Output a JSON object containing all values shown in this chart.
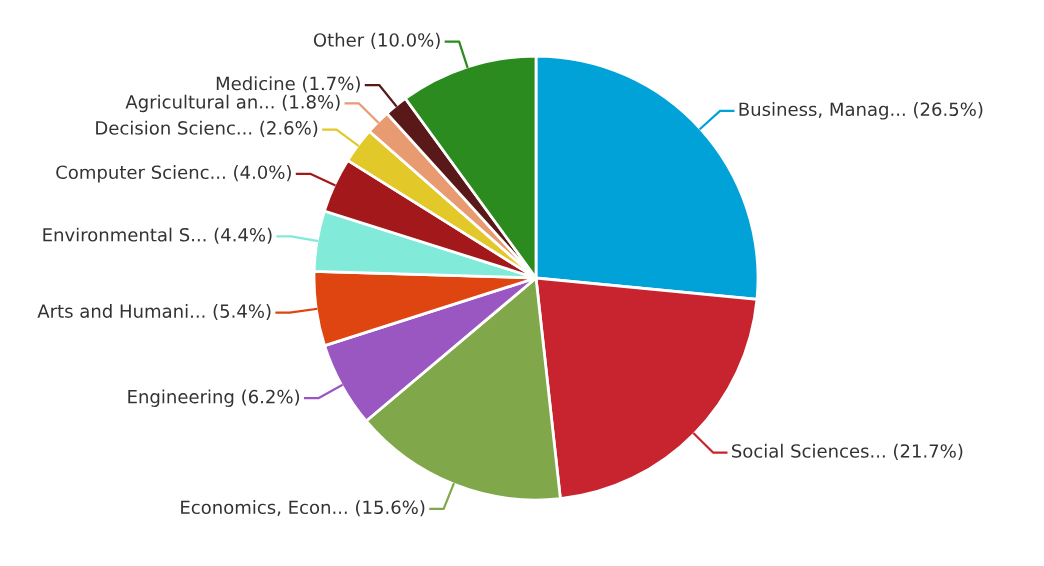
{
  "chart_data": {
    "type": "pie",
    "categories": [
      "Business, Manag...",
      "Social Sciences...",
      "Economics, Econ...",
      "Engineering",
      "Arts and Humani...",
      "Environmental S...",
      "Computer Scienc...",
      "Decision Scienc...",
      "Agricultural an...",
      "Medicine",
      "Other"
    ],
    "values": [
      26.5,
      21.7,
      15.6,
      6.2,
      5.4,
      4.4,
      4.0,
      2.6,
      1.8,
      1.7,
      10.0
    ],
    "value_labels": [
      "(26.5%)",
      "(21.7%)",
      "(15.6%)",
      "(6.2%)",
      "(5.4%)",
      "(4.4%)",
      "(4.0%)",
      "(2.6%)",
      "(1.8%)",
      "(1.7%)",
      "(10.0%)"
    ],
    "colors": [
      "#00a2d8",
      "#c8242f",
      "#80a84b",
      "#9a57c2",
      "#df4510",
      "#82ead9",
      "#a3191b",
      "#e3c82a",
      "#e89a70",
      "#591919",
      "#2b8b1f"
    ],
    "legend": false
  }
}
